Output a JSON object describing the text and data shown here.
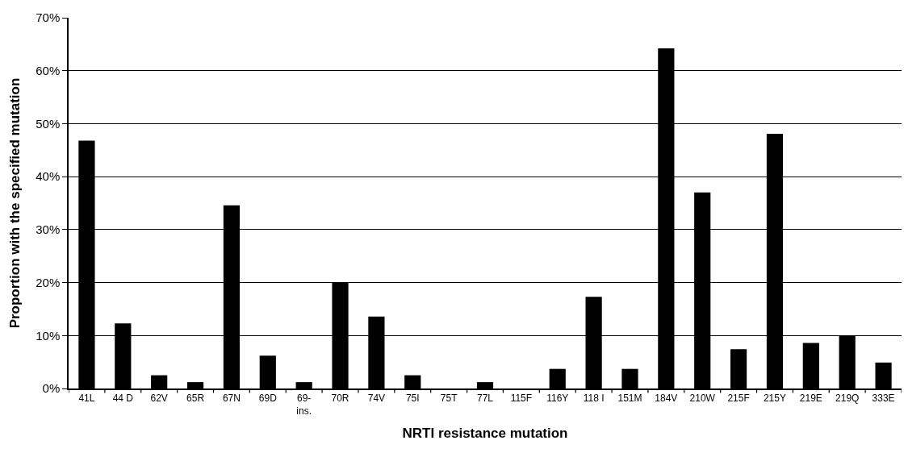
{
  "chart_data": {
    "type": "bar",
    "xlabel": "NRTI resistance mutation",
    "ylabel": "Proportion with the specified mutation",
    "categories": [
      "41L",
      "44 D",
      "62V",
      "65R",
      "67N",
      "69D",
      "69-\nins.",
      "70R",
      "74V",
      "75I",
      "75T",
      "77L",
      "115F",
      "116Y",
      "118 I",
      "151M",
      "184V",
      "210W",
      "215F",
      "215Y",
      "219E",
      "219Q",
      "333E"
    ],
    "values": [
      46.8,
      12.3,
      2.5,
      1.2,
      34.6,
      6.2,
      1.2,
      20.0,
      13.6,
      2.5,
      0,
      1.2,
      0,
      3.7,
      17.3,
      3.7,
      64.2,
      37.0,
      7.4,
      48.1,
      8.6,
      9.9,
      4.9
    ],
    "color": "#000000",
    "ylim": [
      0,
      70
    ],
    "yticks": [
      {
        "value": 0,
        "label": "0%"
      },
      {
        "value": 10,
        "label": "10%"
      },
      {
        "value": 20,
        "label": "20%"
      },
      {
        "value": 30,
        "label": "30%"
      },
      {
        "value": 40,
        "label": "40%"
      },
      {
        "value": 50,
        "label": "50%"
      },
      {
        "value": 60,
        "label": "60%"
      },
      {
        "value": 70,
        "label": "70%"
      }
    ],
    "grid": "y",
    "legend": false
  }
}
